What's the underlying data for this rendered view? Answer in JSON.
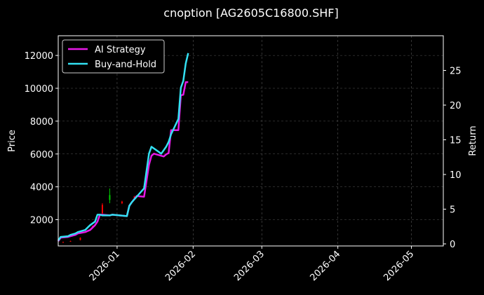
{
  "chart_data": {
    "type": "line",
    "title": "cnoption [AG2605C16800.SHF]",
    "ylabel_left": "Price",
    "ylabel_right": "Return",
    "xlabel": "",
    "x_axis": {
      "type": "date",
      "range": [
        "2025-12-08",
        "2026-05-14"
      ],
      "ticks": [
        "2026-01",
        "2026-02",
        "2026-03",
        "2026-04",
        "2026-05"
      ],
      "tick_rotation_deg": 45
    },
    "y_left": {
      "range": [
        400,
        13200
      ],
      "ticks": [
        2000,
        4000,
        6000,
        8000,
        10000,
        12000
      ],
      "tick_labels": [
        "2000",
        "4000",
        "6000",
        "8000",
        "10000",
        "12000"
      ]
    },
    "y_right": {
      "range": [
        -0.3,
        30.0
      ],
      "ticks": [
        0,
        5,
        10,
        15,
        20,
        25
      ],
      "tick_labels": [
        "0",
        "5",
        "10",
        "15",
        "20",
        "25"
      ]
    },
    "grid": true,
    "legend_position": "top-left",
    "colors": {
      "background": "#000000",
      "grid": "#555555",
      "axes": "#ffffff",
      "up_candle": "#00cc00",
      "down_candle": "#ff0000"
    },
    "series": [
      {
        "name": "AI Strategy",
        "axis": "right",
        "color": "#e619e6",
        "x": [
          "2025-12-08",
          "2025-12-09",
          "2025-12-12",
          "2025-12-13",
          "2025-12-15",
          "2025-12-16",
          "2025-12-19",
          "2025-12-21",
          "2025-12-23",
          "2025-12-24",
          "2025-12-25",
          "2025-12-26",
          "2025-12-29",
          "2025-12-30",
          "2026-01-02",
          "2026-01-05",
          "2026-01-06",
          "2026-01-07",
          "2026-01-09",
          "2026-01-12",
          "2026-01-14",
          "2026-01-15",
          "2026-01-16",
          "2026-01-19",
          "2026-01-20",
          "2026-01-21",
          "2026-01-22",
          "2026-01-23",
          "2026-01-26",
          "2026-01-27",
          "2026-01-28",
          "2026-01-29",
          "2026-01-30"
        ],
        "values": [
          0.4,
          0.9,
          1.0,
          1.1,
          1.3,
          1.5,
          1.7,
          2.0,
          2.7,
          3.2,
          4.2,
          4.2,
          4.1,
          4.2,
          4.1,
          4.0,
          5.5,
          6.0,
          6.9,
          6.8,
          11.4,
          12.7,
          13.0,
          12.7,
          12.6,
          12.9,
          13.1,
          16.4,
          16.4,
          21.4,
          21.5,
          23.3,
          23.3
        ]
      },
      {
        "name": "Buy-and-Hold",
        "axis": "right",
        "color": "#33e0f2",
        "x": [
          "2025-12-08",
          "2025-12-09",
          "2025-12-12",
          "2025-12-13",
          "2025-12-15",
          "2025-12-16",
          "2025-12-19",
          "2025-12-21",
          "2025-12-23",
          "2025-12-24",
          "2025-12-25",
          "2025-12-26",
          "2025-12-29",
          "2025-12-30",
          "2026-01-02",
          "2026-01-05",
          "2026-01-06",
          "2026-01-07",
          "2026-01-09",
          "2026-01-12",
          "2026-01-14",
          "2026-01-15",
          "2026-01-19",
          "2026-01-20",
          "2026-01-21",
          "2026-01-22",
          "2026-01-23",
          "2026-01-26",
          "2026-01-27",
          "2026-01-28",
          "2026-01-29",
          "2026-01-30"
        ],
        "values": [
          0.5,
          1.0,
          1.1,
          1.3,
          1.5,
          1.7,
          2.0,
          2.7,
          3.2,
          4.2,
          4.2,
          4.1,
          4.1,
          4.2,
          4.1,
          4.0,
          5.5,
          6.0,
          6.8,
          8.0,
          13.0,
          14.0,
          13.0,
          13.5,
          14.0,
          14.7,
          15.8,
          18.0,
          22.5,
          23.5,
          26.0,
          27.5
        ]
      },
      {
        "name": "",
        "type": "candlestick",
        "axis": "left",
        "items": [
          {
            "date": "2025-12-10",
            "open": 640,
            "close": 620,
            "high": 660,
            "low": 600
          },
          {
            "date": "2025-12-13",
            "open": 700,
            "close": 680,
            "high": 720,
            "low": 660
          },
          {
            "date": "2025-12-17",
            "open": 900,
            "close": 760,
            "high": 920,
            "low": 740
          },
          {
            "date": "2025-12-22",
            "open": 1600,
            "close": 1500,
            "high": 1650,
            "low": 1480
          },
          {
            "date": "2025-12-26",
            "open": 2900,
            "close": 2400,
            "high": 3000,
            "low": 2300
          },
          {
            "date": "2025-12-29",
            "open": 3200,
            "close": 3500,
            "high": 3900,
            "low": 3000
          },
          {
            "date": "2026-01-03",
            "open": 3100,
            "close": 3000,
            "high": 3150,
            "low": 2950
          },
          {
            "date": "2026-01-08",
            "open": 3400,
            "close": 3350,
            "high": 3450,
            "low": 3250
          }
        ]
      }
    ]
  }
}
